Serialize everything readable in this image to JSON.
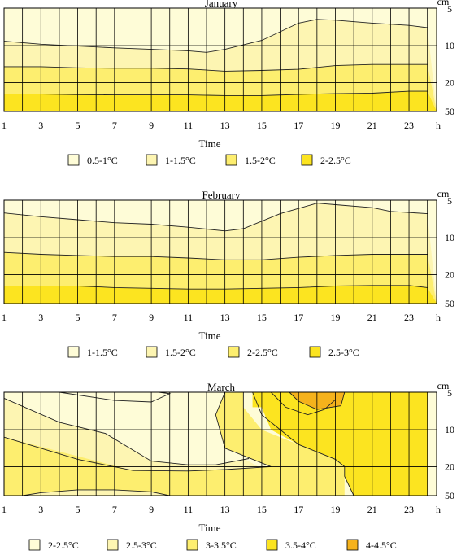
{
  "chart_data": [
    {
      "type": "heatmap",
      "title": "January",
      "xlabel": "Time",
      "x_unit": "h",
      "y_unit": "cm",
      "x_ticks": [
        1,
        3,
        5,
        7,
        9,
        11,
        13,
        15,
        17,
        19,
        21,
        23
      ],
      "y_ticks": [
        5,
        10,
        20,
        50
      ],
      "grid": true,
      "legend_position": "bottom",
      "legend": [
        {
          "label": "0.5-1°C",
          "color": "#FEFCD7"
        },
        {
          "label": "1-1.5°C",
          "color": "#FDF5B2"
        },
        {
          "label": "1.5-2°C",
          "color": "#FDEE6F"
        },
        {
          "label": "2-2.5°C",
          "color": "#FCE420"
        }
      ],
      "boundaries": [
        {
          "below": 1,
          "points": [
            [
              1,
              9.4
            ],
            [
              3,
              9.8
            ],
            [
              5,
              10.1
            ],
            [
              7,
              10.6
            ],
            [
              9,
              11.0
            ],
            [
              11,
              11.4
            ],
            [
              12,
              11.8
            ],
            [
              13,
              11.0
            ],
            [
              15,
              9.3
            ],
            [
              17,
              7.0
            ],
            [
              18,
              6.5
            ],
            [
              19,
              6.6
            ],
            [
              21,
              7.0
            ],
            [
              23,
              7.3
            ],
            [
              24,
              7.6
            ]
          ]
        },
        {
          "below": 2,
          "points": [
            [
              1,
              15.7
            ],
            [
              3,
              15.7
            ],
            [
              5,
              16.0
            ],
            [
              7,
              16.1
            ],
            [
              9,
              16.1
            ],
            [
              11,
              16.3
            ],
            [
              13,
              16.9
            ],
            [
              15,
              16.7
            ],
            [
              17,
              16.4
            ],
            [
              19,
              15.4
            ],
            [
              21,
              15.1
            ],
            [
              23,
              15.1
            ],
            [
              24,
              15.1
            ]
          ]
        },
        {
          "below": 3,
          "points": [
            [
              1,
              31.9
            ],
            [
              3,
              31.9
            ],
            [
              5,
              32.5
            ],
            [
              7,
              32.8
            ],
            [
              9,
              32.8
            ],
            [
              11,
              32.8
            ],
            [
              13,
              33.5
            ],
            [
              15,
              33.5
            ],
            [
              17,
              32.3
            ],
            [
              19,
              31.5
            ],
            [
              21,
              31.0
            ],
            [
              23,
              29.0
            ],
            [
              24,
              29.0
            ]
          ]
        }
      ]
    },
    {
      "type": "heatmap",
      "title": "February",
      "xlabel": "Time",
      "x_unit": "h",
      "y_unit": "cm",
      "x_ticks": [
        1,
        3,
        5,
        7,
        9,
        11,
        13,
        15,
        17,
        19,
        21,
        23
      ],
      "y_ticks": [
        5,
        10,
        20,
        50
      ],
      "grid": true,
      "legend_position": "bottom",
      "legend": [
        {
          "label": "1-1.5°C",
          "color": "#FEFCD7"
        },
        {
          "label": "1.5-2°C",
          "color": "#FDF5B2"
        },
        {
          "label": "2-2.5°C",
          "color": "#FDEE6F"
        },
        {
          "label": "2.5-3°C",
          "color": "#FCE420"
        }
      ],
      "boundaries": [
        {
          "below": 1,
          "points": [
            [
              1,
              6.7
            ],
            [
              3,
              7.2
            ],
            [
              5,
              7.6
            ],
            [
              7,
              8.0
            ],
            [
              9,
              8.2
            ],
            [
              11,
              8.6
            ],
            [
              13,
              9.1
            ],
            [
              14,
              8.8
            ],
            [
              16,
              6.8
            ],
            [
              18,
              5.4
            ],
            [
              19,
              5.6
            ],
            [
              21,
              6.0
            ],
            [
              22,
              6.5
            ],
            [
              24,
              6.8
            ]
          ]
        },
        {
          "below": 2,
          "points": [
            [
              1,
              14.0
            ],
            [
              3,
              14.5
            ],
            [
              5,
              14.8
            ],
            [
              7,
              15.1
            ],
            [
              9,
              15.1
            ],
            [
              11,
              15.5
            ],
            [
              13,
              16.0
            ],
            [
              15,
              16.0
            ],
            [
              17,
              15.3
            ],
            [
              19,
              14.8
            ],
            [
              21,
              14.5
            ],
            [
              24,
              14.5
            ]
          ]
        },
        {
          "below": 3,
          "points": [
            [
              1,
              31.9
            ],
            [
              3,
              31.9
            ],
            [
              5,
              31.9
            ],
            [
              7,
              33.5
            ],
            [
              9,
              34.2
            ],
            [
              11,
              35.0
            ],
            [
              13,
              35.0
            ],
            [
              15,
              34.2
            ],
            [
              17,
              33.5
            ],
            [
              19,
              31.9
            ],
            [
              21,
              31.3
            ],
            [
              23,
              31.3
            ],
            [
              24,
              33.5
            ]
          ]
        }
      ]
    },
    {
      "type": "heatmap",
      "title": "March",
      "xlabel": "Time",
      "x_unit": "h",
      "y_unit": "cm",
      "x_ticks": [
        1,
        3,
        5,
        7,
        9,
        11,
        13,
        15,
        17,
        19,
        21,
        23
      ],
      "y_ticks": [
        5,
        10,
        20,
        50
      ],
      "grid": true,
      "legend_position": "bottom",
      "legend": [
        {
          "label": "2-2.5°C",
          "color": "#FEFCD7"
        },
        {
          "label": "2.5-3°C",
          "color": "#FDF5B2"
        },
        {
          "label": "3-3.5°C",
          "color": "#FDEE6F"
        },
        {
          "label": "3.5-4°C",
          "color": "#FCE420"
        },
        {
          "label": "4-4.5°C",
          "color": "#F5B21C"
        }
      ]
    }
  ]
}
